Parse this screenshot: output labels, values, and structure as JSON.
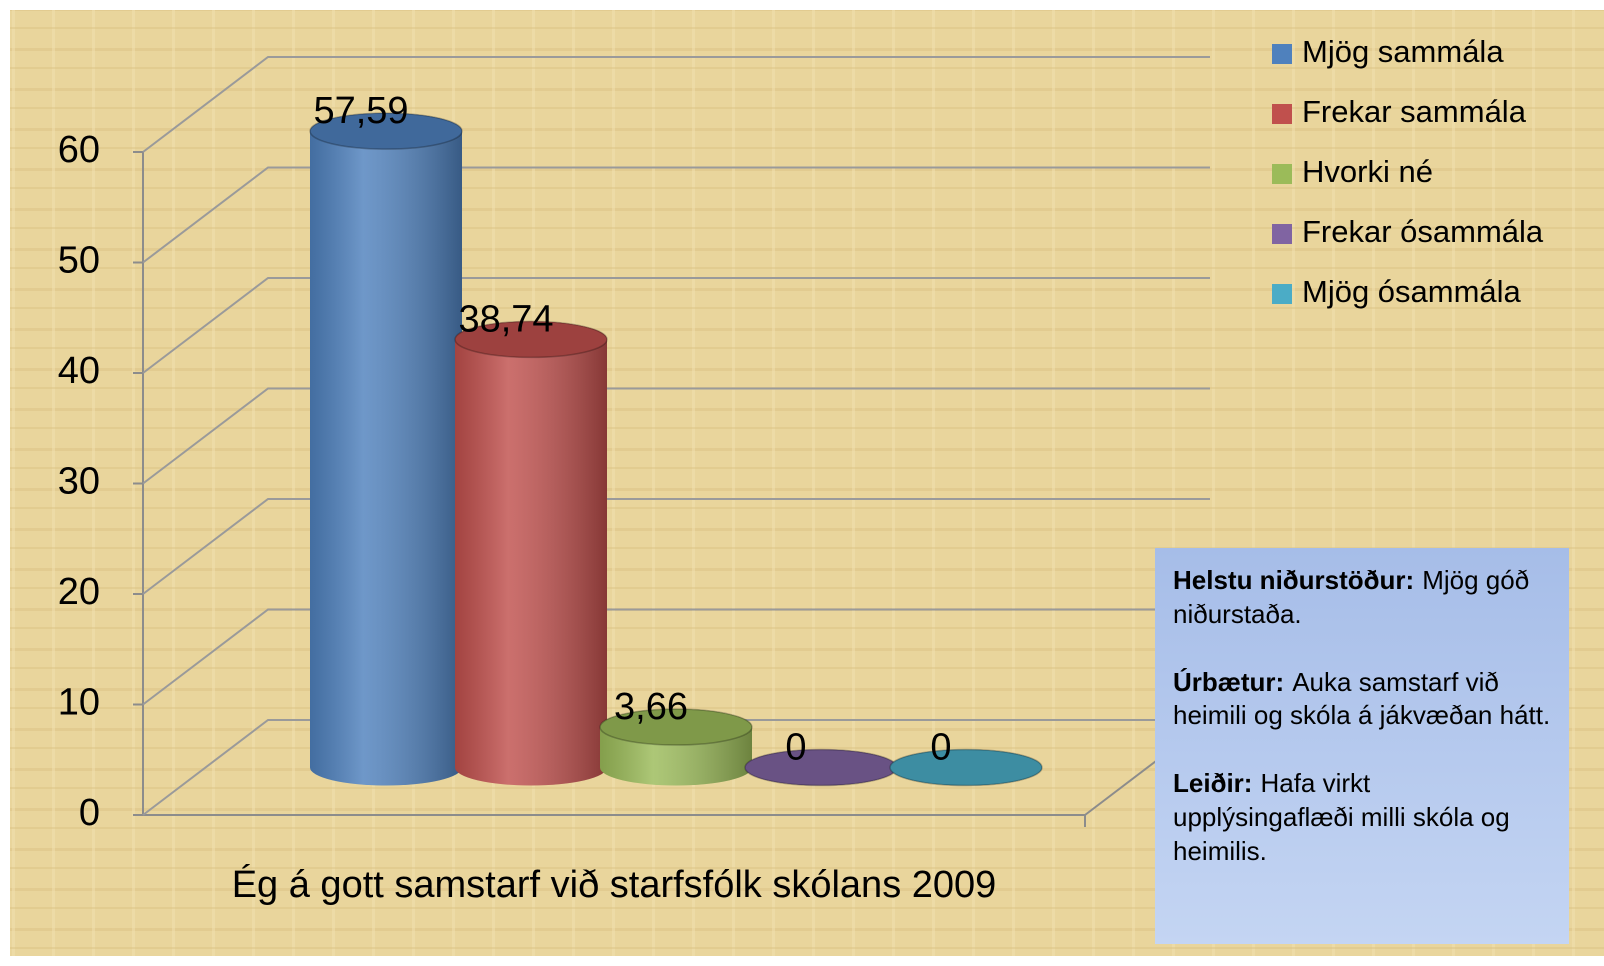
{
  "chart_data": {
    "type": "bar3d",
    "categories": [
      "Ég á gott samstarf við starfsfólk skólans 2009"
    ],
    "series": [
      {
        "name": "Mjög sammála",
        "color": "#4f81bd",
        "values": [
          57.59
        ],
        "value_labels": [
          "57,59"
        ]
      },
      {
        "name": "Frekar sammála",
        "color": "#c0504d",
        "values": [
          38.74
        ],
        "value_labels": [
          "38,74"
        ]
      },
      {
        "name": "Hvorki né",
        "color": "#9bbb59",
        "values": [
          3.66
        ],
        "value_labels": [
          "3,66"
        ]
      },
      {
        "name": "Frekar ósammála",
        "color": "#8064a2",
        "values": [
          0
        ],
        "value_labels": [
          "0"
        ]
      },
      {
        "name": "Mjög ósammála",
        "color": "#4bacc6",
        "values": [
          0
        ],
        "value_labels": [
          "0"
        ]
      }
    ],
    "ylim": [
      0,
      60
    ],
    "yticks": [
      0,
      10,
      20,
      30,
      40,
      50,
      60
    ],
    "grid": true,
    "legend": "top-right",
    "annotations": [
      {
        "label": "Helstu niðurstöður:",
        "text": "Mjög góð niðurstaða."
      },
      {
        "label": "Úrbætur:",
        "text": "Auka samstarf við heimili og skóla á jákvæðan hátt."
      },
      {
        "label": "Leiðir:",
        "text": "Hafa virkt upplýsingaflæði milli skóla og heimilis."
      }
    ]
  }
}
